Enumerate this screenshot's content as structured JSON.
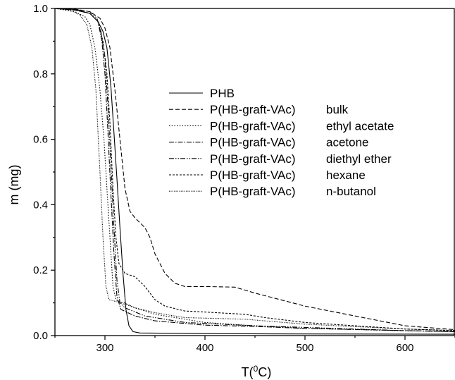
{
  "chart_data": {
    "type": "line",
    "title": "",
    "xlabel": "T(0C)",
    "xlabel_parts": {
      "pre": "T(",
      "sup": "0",
      "post": "C)"
    },
    "ylabel": "m (mg)",
    "xlim": [
      250,
      650
    ],
    "ylim": [
      0,
      1.0
    ],
    "xticks": [
      300,
      400,
      500,
      600
    ],
    "yticks": [
      "0.0",
      "0.2",
      "0.4",
      "0.6",
      "0.8",
      "1.0"
    ],
    "grid": false,
    "legend_position": "upper-right-inside",
    "series": [
      {
        "name": "PHB",
        "style": "solid",
        "points": [
          [
            250,
            1.0
          ],
          [
            270,
            0.997
          ],
          [
            285,
            0.985
          ],
          [
            293,
            0.96
          ],
          [
            298,
            0.93
          ],
          [
            302,
            0.88
          ],
          [
            306,
            0.76
          ],
          [
            309,
            0.62
          ],
          [
            312,
            0.48
          ],
          [
            315,
            0.33
          ],
          [
            318,
            0.19
          ],
          [
            321,
            0.08
          ],
          [
            324,
            0.03
          ],
          [
            328,
            0.012
          ],
          [
            335,
            0.008
          ],
          [
            400,
            0.006
          ],
          [
            500,
            0.005
          ],
          [
            650,
            0.004
          ]
        ]
      },
      {
        "name": "P(HB-graft-VAc)",
        "label_suffix": "bulk",
        "style": "dashed",
        "points": [
          [
            250,
            1.0
          ],
          [
            270,
            0.998
          ],
          [
            285,
            0.99
          ],
          [
            295,
            0.97
          ],
          [
            300,
            0.94
          ],
          [
            305,
            0.88
          ],
          [
            310,
            0.75
          ],
          [
            315,
            0.6
          ],
          [
            320,
            0.45
          ],
          [
            325,
            0.38
          ],
          [
            330,
            0.36
          ],
          [
            340,
            0.33
          ],
          [
            345,
            0.3
          ],
          [
            350,
            0.25
          ],
          [
            360,
            0.19
          ],
          [
            370,
            0.16
          ],
          [
            380,
            0.15
          ],
          [
            400,
            0.15
          ],
          [
            430,
            0.148
          ],
          [
            450,
            0.13
          ],
          [
            500,
            0.09
          ],
          [
            550,
            0.06
          ],
          [
            600,
            0.03
          ],
          [
            650,
            0.018
          ]
        ]
      },
      {
        "name": "P(HB-graft-VAc)",
        "label_suffix": "ethyl acetate",
        "style": "dotted",
        "points": [
          [
            250,
            1.0
          ],
          [
            270,
            0.99
          ],
          [
            280,
            0.975
          ],
          [
            285,
            0.95
          ],
          [
            290,
            0.88
          ],
          [
            295,
            0.75
          ],
          [
            299,
            0.6
          ],
          [
            302,
            0.45
          ],
          [
            305,
            0.3
          ],
          [
            308,
            0.15
          ],
          [
            311,
            0.11
          ],
          [
            316,
            0.1
          ],
          [
            330,
            0.085
          ],
          [
            350,
            0.065
          ],
          [
            400,
            0.04
          ],
          [
            450,
            0.03
          ],
          [
            500,
            0.022
          ],
          [
            600,
            0.015
          ],
          [
            650,
            0.012
          ]
        ]
      },
      {
        "name": "P(HB-graft-VAc)",
        "label_suffix": "acetone",
        "style": "dashdot",
        "points": [
          [
            250,
            1.0
          ],
          [
            270,
            0.995
          ],
          [
            285,
            0.985
          ],
          [
            293,
            0.96
          ],
          [
            297,
            0.9
          ],
          [
            300,
            0.8
          ],
          [
            303,
            0.62
          ],
          [
            306,
            0.43
          ],
          [
            309,
            0.25
          ],
          [
            312,
            0.12
          ],
          [
            316,
            0.08
          ],
          [
            330,
            0.06
          ],
          [
            350,
            0.045
          ],
          [
            400,
            0.032
          ],
          [
            450,
            0.028
          ],
          [
            500,
            0.022
          ],
          [
            600,
            0.015
          ],
          [
            650,
            0.012
          ]
        ]
      },
      {
        "name": "P(HB-graft-VAc)",
        "label_suffix": "diethyl ether",
        "style": "dashdotdot",
        "points": [
          [
            250,
            1.0
          ],
          [
            270,
            0.997
          ],
          [
            285,
            0.99
          ],
          [
            292,
            0.97
          ],
          [
            296,
            0.93
          ],
          [
            300,
            0.85
          ],
          [
            303,
            0.7
          ],
          [
            306,
            0.52
          ],
          [
            309,
            0.33
          ],
          [
            312,
            0.17
          ],
          [
            315,
            0.1
          ],
          [
            320,
            0.085
          ],
          [
            340,
            0.06
          ],
          [
            380,
            0.04
          ],
          [
            450,
            0.03
          ],
          [
            500,
            0.025
          ],
          [
            600,
            0.015
          ],
          [
            650,
            0.012
          ]
        ]
      },
      {
        "name": "P(HB-graft-VAc)",
        "label_suffix": "hexane",
        "style": "shortdash",
        "points": [
          [
            250,
            1.0
          ],
          [
            270,
            0.995
          ],
          [
            285,
            0.985
          ],
          [
            293,
            0.96
          ],
          [
            298,
            0.9
          ],
          [
            302,
            0.8
          ],
          [
            305,
            0.65
          ],
          [
            308,
            0.45
          ],
          [
            311,
            0.3
          ],
          [
            314,
            0.22
          ],
          [
            320,
            0.19
          ],
          [
            330,
            0.18
          ],
          [
            340,
            0.15
          ],
          [
            350,
            0.11
          ],
          [
            360,
            0.09
          ],
          [
            380,
            0.075
          ],
          [
            400,
            0.072
          ],
          [
            440,
            0.065
          ],
          [
            460,
            0.055
          ],
          [
            500,
            0.04
          ],
          [
            550,
            0.03
          ],
          [
            600,
            0.02
          ],
          [
            650,
            0.015
          ]
        ]
      },
      {
        "name": "P(HB-graft-VAc)",
        "label_suffix": "n-butanol",
        "style": "finedot",
        "points": [
          [
            250,
            1.0
          ],
          [
            265,
            0.995
          ],
          [
            275,
            0.98
          ],
          [
            282,
            0.95
          ],
          [
            287,
            0.88
          ],
          [
            291,
            0.75
          ],
          [
            295,
            0.5
          ],
          [
            298,
            0.3
          ],
          [
            301,
            0.15
          ],
          [
            304,
            0.11
          ],
          [
            310,
            0.105
          ],
          [
            320,
            0.1
          ],
          [
            330,
            0.085
          ],
          [
            350,
            0.07
          ],
          [
            380,
            0.055
          ],
          [
            440,
            0.05
          ],
          [
            500,
            0.035
          ],
          [
            600,
            0.02
          ],
          [
            650,
            0.016
          ]
        ]
      }
    ]
  }
}
